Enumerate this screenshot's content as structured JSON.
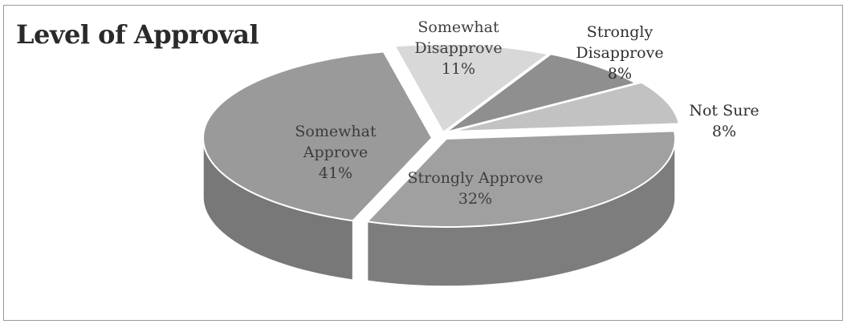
{
  "chart_data": {
    "type": "pie",
    "title": "Level of Approval",
    "three_d": true,
    "legend": "none",
    "slices": [
      {
        "label": "Strongly Approve",
        "value": 32,
        "display": "32%",
        "color": "#a0a0a0"
      },
      {
        "label": "Somewhat Approve",
        "value": 41,
        "display": "41%",
        "color": "#9a9a9a"
      },
      {
        "label": "Somewhat Disapprove",
        "value": 11,
        "display": "11%",
        "color": "#d8d8d8"
      },
      {
        "label": "Strongly Disapprove",
        "value": 8,
        "display": "8%",
        "color": "#8f8f8f"
      },
      {
        "label": "Not Sure",
        "value": 8,
        "display": "8%",
        "color": "#c2c2c2"
      }
    ]
  }
}
